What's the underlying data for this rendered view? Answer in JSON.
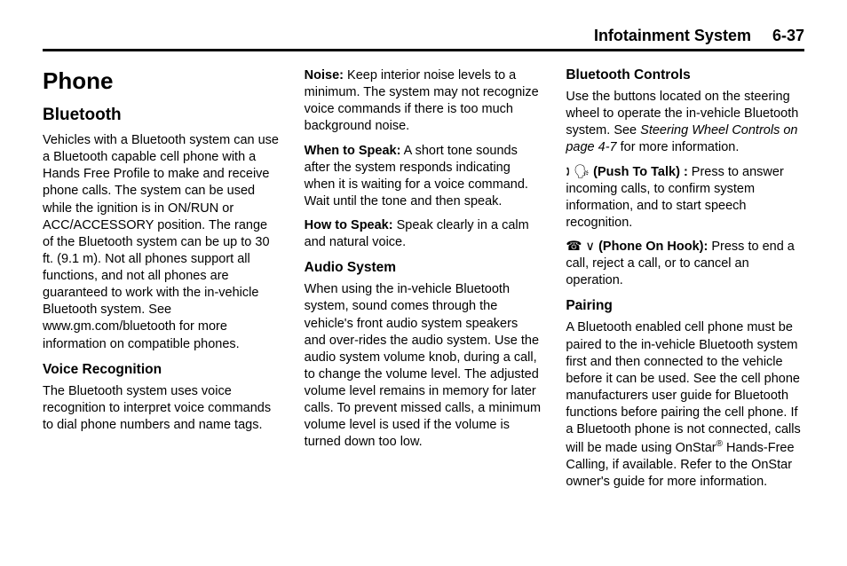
{
  "header": {
    "title": "Infotainment System",
    "page": "6-37"
  },
  "col1": {
    "h1": "Phone",
    "h2": "Bluetooth",
    "p1": "Vehicles with a Bluetooth system can use a Bluetooth capable cell phone with a Hands Free Profile to make and receive phone calls. The system can be used while the ignition is in ON/RUN or ACC/ACCESSORY position. The range of the Bluetooth system can be up to 30 ft. (9.1 m). Not all phones support all functions, and not all phones are guaranteed to work with the in-vehicle Bluetooth system. See www.gm.com/bluetooth for more information on compatible phones.",
    "h3": "Voice Recognition",
    "p2": "The Bluetooth system uses voice recognition to interpret voice commands to dial phone numbers and name tags."
  },
  "col2": {
    "noise_lead": "Noise:",
    "noise_body": "  Keep interior noise levels to a minimum. The system may not recognize voice commands if there is too much background noise.",
    "when_lead": "When to Speak:",
    "when_body": "  A short tone sounds after the system responds indicating when it is waiting for a voice command. Wait until the tone and then speak.",
    "how_lead": "How to Speak:",
    "how_body": "  Speak clearly in a calm and natural voice.",
    "h3": "Audio System",
    "audio_body": "When using the in-vehicle Bluetooth system, sound comes through the vehicle's front audio system speakers and over-rides the audio system. Use the audio system volume knob, during a call, to change the volume level. The adjusted volume level remains in memory for later calls. To prevent missed calls, a minimum volume level is used if the volume is turned down too low."
  },
  "col3": {
    "h3a": "Bluetooth Controls",
    "p1a": "Use the buttons located on the steering wheel to operate the in-vehicle Bluetooth system. See ",
    "p1b_italic": "Steering Wheel Controls on page 4-7",
    "p1c": " for more information.",
    "ptt_icon": "🕽 🗣",
    "ptt_lead": " (Push To Talk) :",
    "ptt_body": "  Press to answer incoming calls, to confirm system information, and to start speech recognition.",
    "poh_icon": "☎ ∨ ",
    "poh_lead": " (Phone On Hook):",
    "poh_body": "  Press to end a call, reject a call, or to cancel an operation.",
    "h3b": "Pairing",
    "pair_a": "A Bluetooth enabled cell phone must be paired to the in-vehicle Bluetooth system first and then connected to the vehicle before it can be used. See the cell phone manufacturers user guide for Bluetooth functions before pairing the cell phone. If a Bluetooth phone is not connected, calls will be made using OnStar",
    "pair_sup": "®",
    "pair_b": " Hands-Free Calling, if available. Refer to the OnStar owner's guide for more information."
  }
}
